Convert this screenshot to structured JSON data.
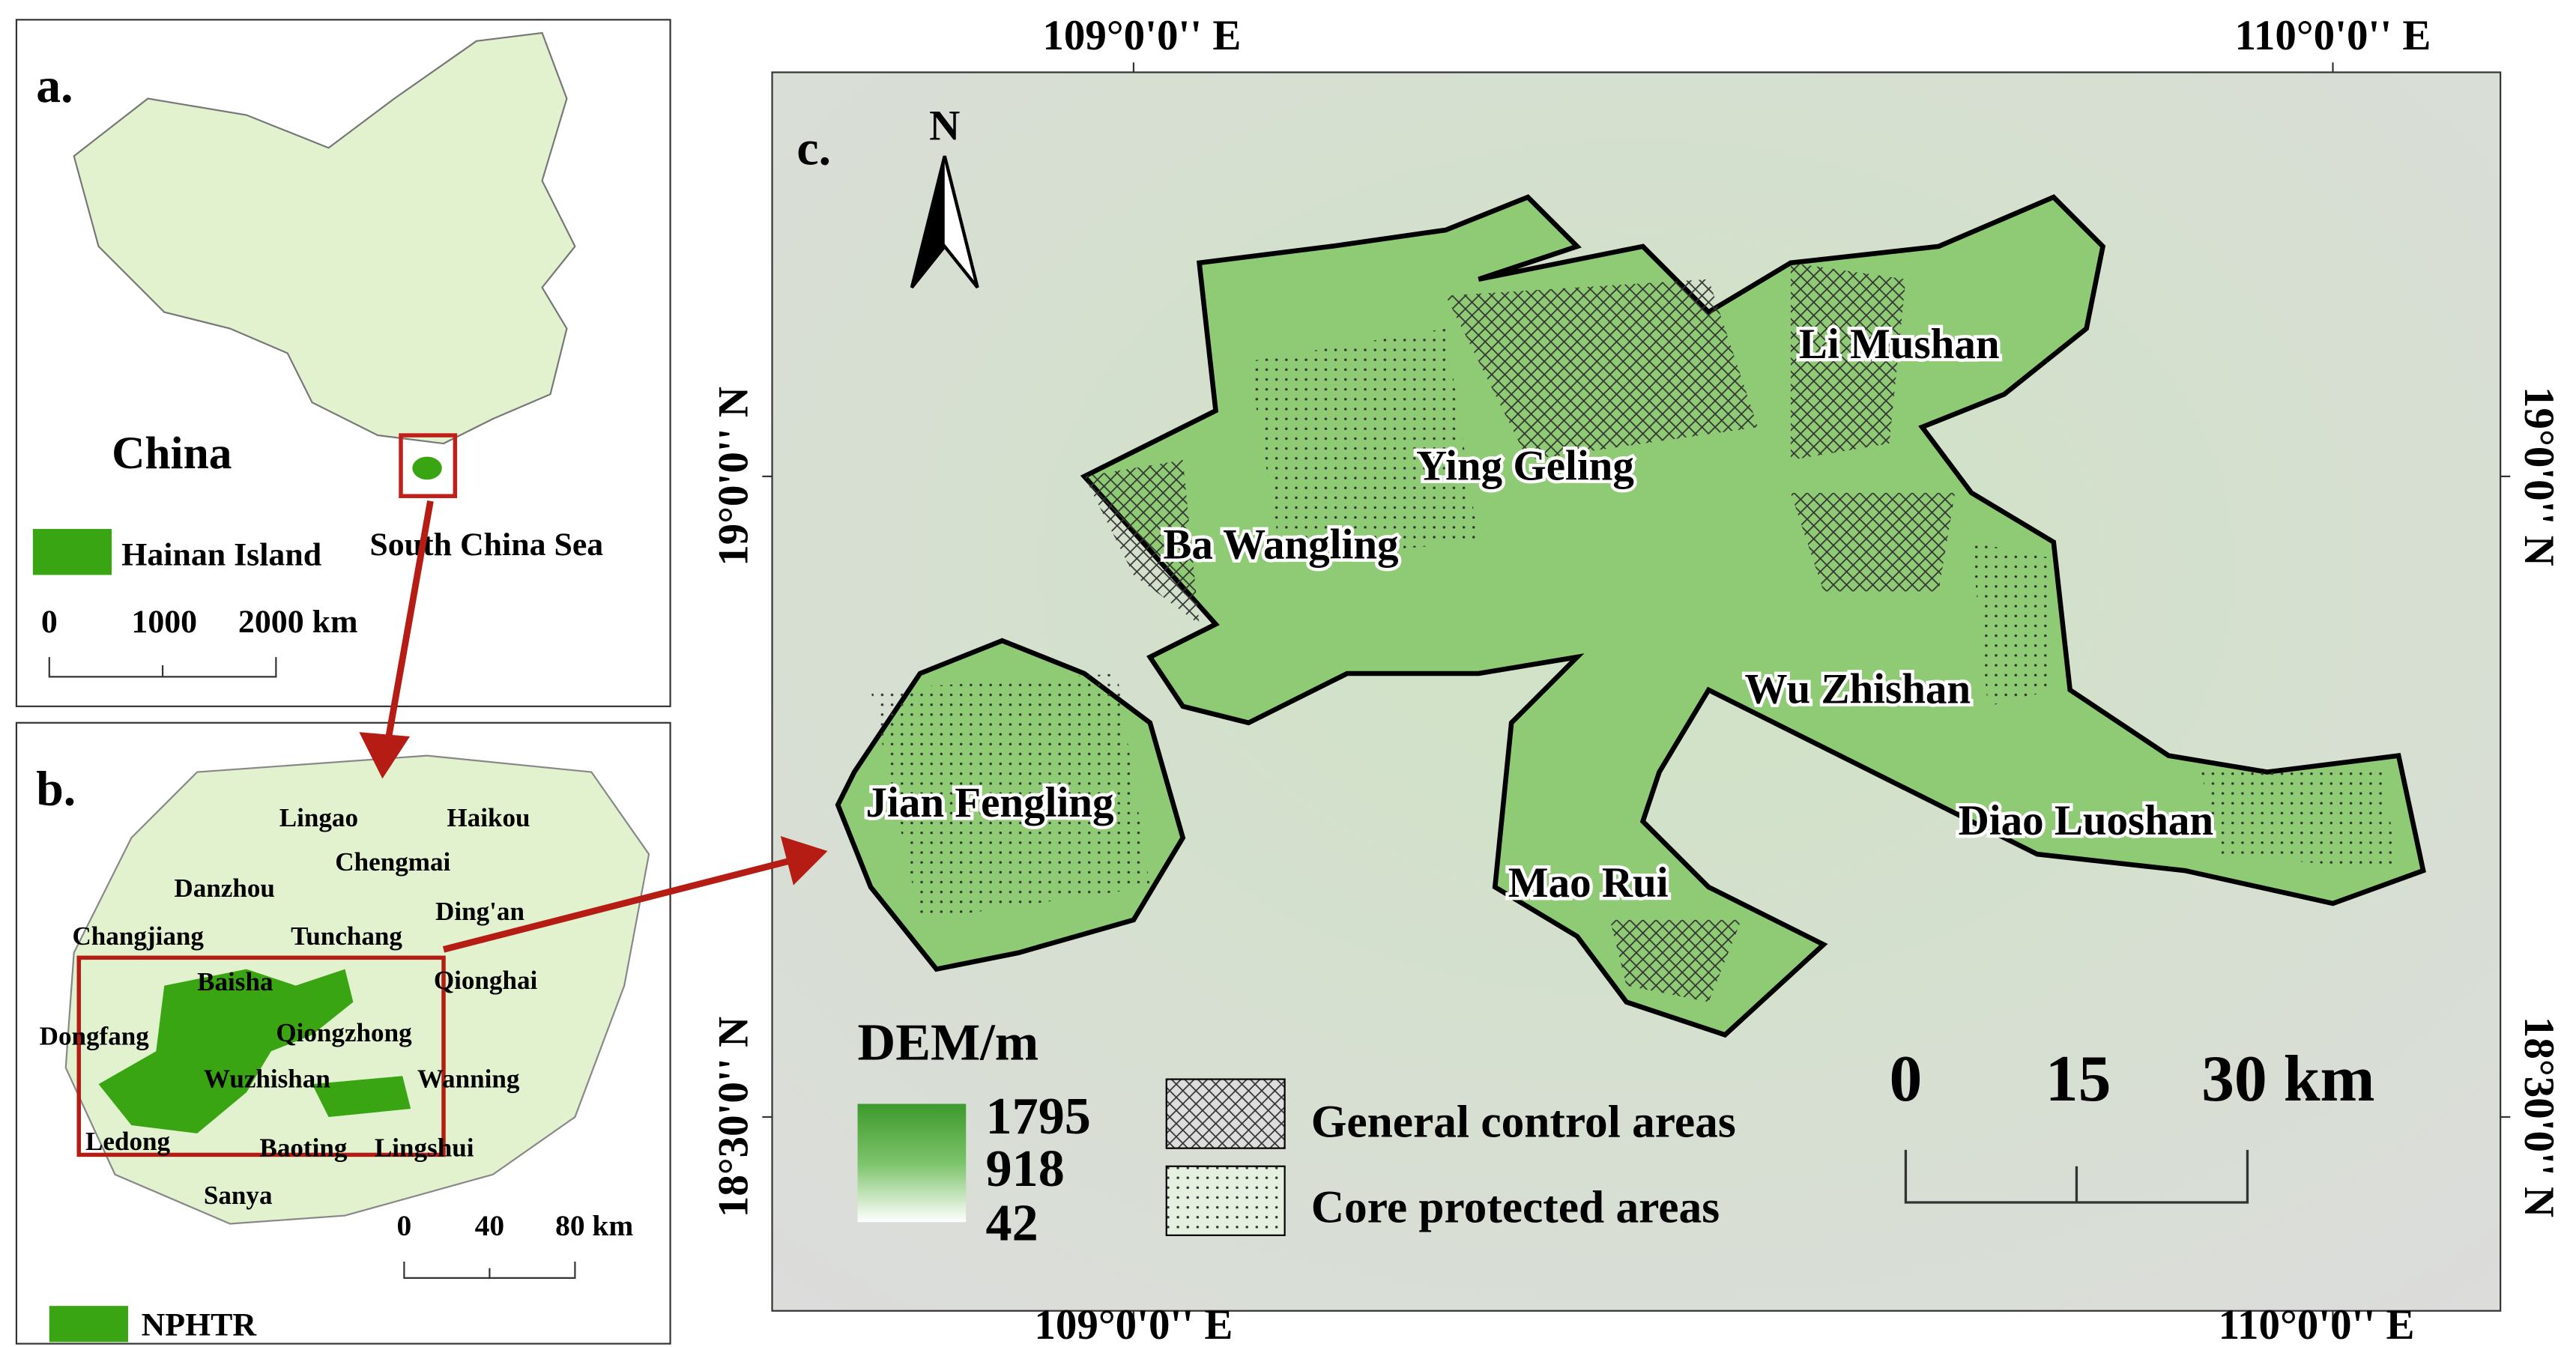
{
  "panel_a": {
    "label": "a.",
    "country": "China",
    "legend": "Hainan Island",
    "sea": "South China Sea",
    "scale": [
      "0",
      "1000",
      "2000 km"
    ]
  },
  "panel_b": {
    "label": "b.",
    "places": [
      "Lingao",
      "Haikou",
      "Chengmai",
      "Danzhou",
      "Ding'an",
      "Changjiang",
      "Tunchang",
      "Qionghai",
      "Baisha",
      "Dongfang",
      "Qiongzhong",
      "Wuzhishan",
      "Wanning",
      "Ledong",
      "Baoting",
      "Lingshui",
      "Sanya"
    ],
    "scale": [
      "0",
      "40",
      "80 km"
    ],
    "legend": "NPHTR"
  },
  "panel_c": {
    "label": "c.",
    "north": "N",
    "reserves": [
      "Li Mushan",
      "Ying Geling",
      "Ba Wangling",
      "Wu Zhishan",
      "Jian Fengling",
      "Diao Luoshan",
      "Mao Rui"
    ],
    "lon_labels_top": [
      "109°0'0'' E",
      "110°0'0'' E"
    ],
    "lon_labels_bottom": [
      "109°0'0'' E",
      "110°0'0'' E"
    ],
    "lat_labels_left": [
      "19°0'0'' N",
      "18°30'0'' N"
    ],
    "lat_labels_right": [
      "19°0'0'' N",
      "18°30'0'' N"
    ],
    "dem_title": "DEM/m",
    "dem_values": [
      "1795",
      "918",
      "42"
    ],
    "legend": [
      "General control areas",
      "Core protected areas"
    ],
    "scale": [
      "0",
      "15",
      "30 km"
    ]
  }
}
